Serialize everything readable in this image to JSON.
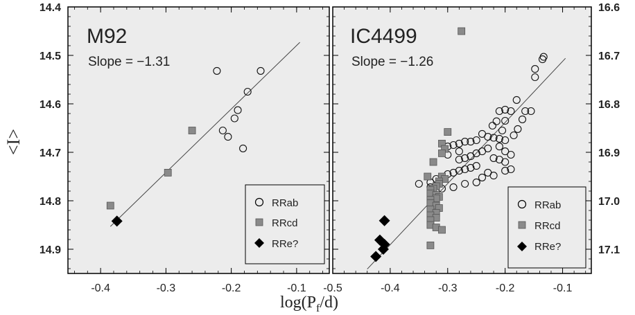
{
  "chart_data": [
    {
      "type": "scatter",
      "title": "M92",
      "subtitle": "Slope = −1.31",
      "xlabel": "log(P_f/d)",
      "ylabel": "<I>",
      "xlim": [
        -0.45,
        -0.05
      ],
      "ylim": [
        14.95,
        14.4
      ],
      "y_axis_side": "left",
      "x_ticks": [
        "-0.4",
        "-0.3",
        "-0.2",
        "-0.1"
      ],
      "y_ticks": [
        "14.4",
        "14.5",
        "14.6",
        "14.7",
        "14.8",
        "14.9"
      ],
      "grid": false,
      "legend_position": "bottom-right",
      "fit_line": [
        [
          -0.385,
          14.853
        ],
        [
          -0.095,
          14.473
        ]
      ],
      "series": [
        {
          "name": "RRab",
          "marker": "open-circle",
          "x": [
            -0.222,
            -0.155,
            -0.175,
            -0.19,
            -0.195,
            -0.213,
            -0.205,
            -0.182
          ],
          "y": [
            14.532,
            14.532,
            14.575,
            14.613,
            14.63,
            14.655,
            14.668,
            14.692
          ]
        },
        {
          "name": "RRcd",
          "marker": "gray-square",
          "x": [
            -0.26,
            -0.297,
            -0.385
          ],
          "y": [
            14.655,
            14.742,
            14.81
          ]
        },
        {
          "name": "RRe?",
          "marker": "diamond",
          "x": [
            -0.375
          ],
          "y": [
            14.842
          ]
        }
      ]
    },
    {
      "type": "scatter",
      "title": "IC4499",
      "subtitle": "Slope = −1.26",
      "xlabel": "log(P_f/d)",
      "ylabel": "",
      "xlim": [
        -0.5,
        -0.05
      ],
      "ylim": [
        17.15,
        16.6
      ],
      "y_axis_side": "right",
      "x_ticks": [
        "-0.5",
        "-0.4",
        "-0.3",
        "-0.2",
        "-0.1"
      ],
      "y_ticks": [
        "16.6",
        "16.7",
        "16.8",
        "16.9",
        "17.0",
        "17.1"
      ],
      "grid": false,
      "legend_position": "bottom-right",
      "fit_line": [
        [
          -0.44,
          17.141
        ],
        [
          -0.095,
          16.706
        ]
      ],
      "series": [
        {
          "name": "RRab",
          "marker": "open-circle",
          "x": [
            -0.135,
            -0.133,
            -0.148,
            -0.148,
            -0.155,
            -0.2,
            -0.21,
            -0.19,
            -0.18,
            -0.165,
            -0.17,
            -0.215,
            -0.222,
            -0.2,
            -0.205,
            -0.178,
            -0.185,
            -0.2,
            -0.21,
            -0.22,
            -0.23,
            -0.24,
            -0.25,
            -0.26,
            -0.27,
            -0.28,
            -0.29,
            -0.3,
            -0.21,
            -0.2,
            -0.23,
            -0.19,
            -0.24,
            -0.25,
            -0.26,
            -0.27,
            -0.28,
            -0.22,
            -0.21,
            -0.2,
            -0.25,
            -0.26,
            -0.27,
            -0.28,
            -0.29,
            -0.3,
            -0.31,
            -0.32,
            -0.33,
            -0.24,
            -0.22,
            -0.2,
            -0.19,
            -0.23,
            -0.25,
            -0.27,
            -0.29,
            -0.31,
            -0.33,
            -0.35,
            -0.28,
            -0.3
          ],
          "y": [
            16.708,
            16.703,
            16.728,
            16.745,
            16.815,
            16.812,
            16.815,
            16.815,
            16.792,
            16.815,
            16.832,
            16.836,
            16.845,
            16.835,
            16.855,
            16.852,
            16.865,
            16.875,
            16.872,
            16.87,
            16.868,
            16.862,
            16.875,
            16.878,
            16.878,
            16.882,
            16.885,
            16.888,
            16.888,
            16.898,
            16.892,
            16.905,
            16.898,
            16.902,
            16.908,
            16.912,
            16.915,
            16.912,
            16.915,
            16.92,
            16.928,
            16.932,
            16.935,
            16.938,
            16.942,
            16.945,
            16.952,
            16.955,
            16.962,
            16.952,
            16.948,
            16.938,
            16.935,
            16.942,
            16.962,
            16.965,
            16.972,
            16.975,
            16.972,
            16.965,
            16.898,
            16.905
          ]
        },
        {
          "name": "RRcd",
          "marker": "gray-square",
          "x": [
            -0.276,
            -0.3,
            -0.31,
            -0.305,
            -0.31,
            -0.325,
            -0.335,
            -0.31,
            -0.305,
            -0.315,
            -0.315,
            -0.32,
            -0.325,
            -0.33,
            -0.33,
            -0.32,
            -0.315,
            -0.32,
            -0.33,
            -0.33,
            -0.32,
            -0.315,
            -0.33,
            -0.32,
            -0.33,
            -0.32,
            -0.33,
            -0.33,
            -0.32,
            -0.31,
            -0.33
          ],
          "y": [
            16.65,
            16.858,
            16.882,
            16.893,
            16.902,
            16.92,
            16.95,
            16.95,
            16.955,
            16.96,
            16.965,
            16.97,
            16.975,
            16.978,
            16.985,
            16.988,
            16.992,
            16.995,
            16.998,
            17.005,
            17.01,
            17.015,
            17.018,
            17.025,
            17.03,
            17.035,
            17.04,
            17.05,
            17.055,
            17.06,
            17.092
          ]
        },
        {
          "name": "RRe?",
          "marker": "diamond",
          "x": [
            -0.41,
            -0.418,
            -0.41,
            -0.412,
            -0.425
          ],
          "y": [
            17.041,
            17.081,
            17.09,
            17.1,
            17.115
          ]
        }
      ]
    }
  ],
  "legend_labels": [
    "RRab",
    "RRcd",
    "RRe?"
  ],
  "shared_xlabel_base": "log(P",
  "shared_xlabel_sub": "f",
  "shared_xlabel_end": "/d)",
  "shared_ylabel": "<I>"
}
